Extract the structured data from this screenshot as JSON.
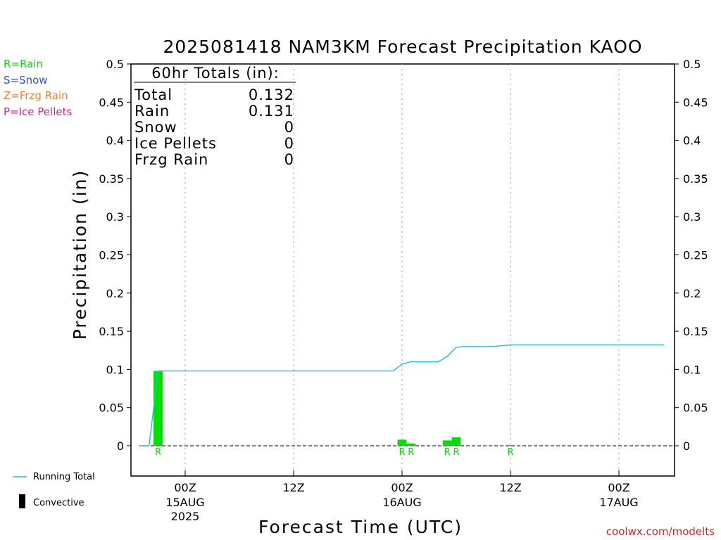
{
  "chart_data": {
    "type": "bar",
    "title": "2025081418 NAM3KM Forecast Precipitation KAOO",
    "xlabel": "Forecast Time (UTC)",
    "ylabel": "Precipitation (in)",
    "ylim": [
      -0.04,
      0.5
    ],
    "yticks": [
      "0.5",
      "0.45",
      "0.4",
      "0.35",
      "0.3",
      "0.25",
      "0.2",
      "0.15",
      "0.1",
      "0.05",
      "0"
    ],
    "xlim_hours": [
      -7,
      53
    ],
    "xticks": [
      {
        "hour": 0,
        "label": "00Z",
        "sub": "15AUG",
        "sub2": "2025"
      },
      {
        "hour": 12,
        "label": "12Z",
        "sub": "",
        "sub2": ""
      },
      {
        "hour": 24,
        "label": "00Z",
        "sub": "16AUG",
        "sub2": ""
      },
      {
        "hour": 36,
        "label": "12Z",
        "sub": "",
        "sub2": ""
      },
      {
        "hour": 48,
        "label": "00Z",
        "sub": "17AUG",
        "sub2": ""
      }
    ],
    "bars": [
      {
        "hour": -3,
        "value": 0.098,
        "type": "R"
      },
      {
        "hour": 0,
        "value": 0.0
      },
      {
        "hour": 24,
        "value": 0.008,
        "type": "R"
      },
      {
        "hour": 25,
        "value": 0.003,
        "type": "R"
      },
      {
        "hour": 29,
        "value": 0.007,
        "type": "R"
      },
      {
        "hour": 30,
        "value": 0.011,
        "type": "R"
      },
      {
        "hour": 36,
        "value": 0.001,
        "type": "R"
      }
    ],
    "running_total": [
      [
        -5,
        0.0
      ],
      [
        -4,
        0.0
      ],
      [
        -3,
        0.098
      ],
      [
        0,
        0.098
      ],
      [
        12,
        0.098
      ],
      [
        23,
        0.098
      ],
      [
        24,
        0.107
      ],
      [
        25,
        0.11
      ],
      [
        28,
        0.11
      ],
      [
        29,
        0.117
      ],
      [
        30,
        0.129
      ],
      [
        31,
        0.13
      ],
      [
        33,
        0.13
      ],
      [
        34,
        0.13
      ],
      [
        35,
        0.131
      ],
      [
        36,
        0.132
      ],
      [
        53,
        0.132
      ]
    ],
    "series": [
      {
        "name": "Running Total",
        "color": "#20c0c8"
      },
      {
        "name": "Convective",
        "color": "#000000"
      }
    ],
    "grid": "vertical dotted at each 12Z"
  },
  "legend": {
    "rain": "R=Rain",
    "snow": "S=Snow",
    "frzg": "Z=Frzg Rain",
    "ice": "P=Ice Pellets",
    "running_total": "Running Total",
    "convective": "Convective"
  },
  "totals": {
    "header": "60hr Totals (in):",
    "rows": [
      {
        "label": "Total",
        "value": "0.132"
      },
      {
        "label": "Rain",
        "value": "0.131"
      },
      {
        "label": "Snow",
        "value": "0"
      },
      {
        "label": "Ice Pellets",
        "value": "0"
      },
      {
        "label": "Frzg Rain",
        "value": "0"
      }
    ]
  },
  "credit": "coolwx.com/modelts",
  "colors": {
    "rain": "#00e000",
    "snow": "#3050e0",
    "frzg": "#f08030",
    "ice": "#e02090",
    "running_total": "#20c0c8"
  }
}
